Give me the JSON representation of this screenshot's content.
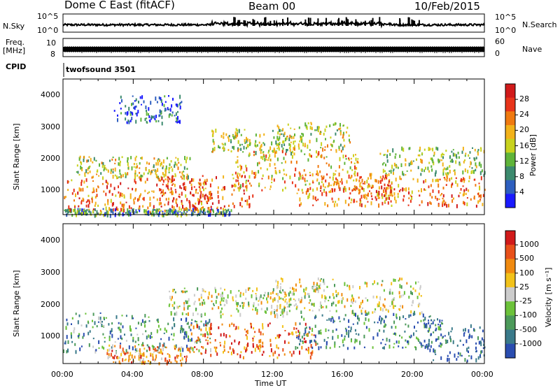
{
  "header": {
    "station": "Dome C East (fitACF)",
    "beam": "Beam 00",
    "date": "10/Feb/2015"
  },
  "panels": {
    "nsky": {
      "label": "N.Sky",
      "ticks": [
        "10^5",
        "10^0"
      ]
    },
    "nsearch": {
      "label": "N.Search",
      "ticks": [
        "10^5",
        "10^0"
      ]
    },
    "freq": {
      "label_line1": "Freq.",
      "label_line2": "[MHz]",
      "ticks": [
        "10",
        "8"
      ]
    },
    "nave": {
      "label": "Nave",
      "ticks": [
        "60",
        "0"
      ]
    },
    "cpid": {
      "label": "CPID",
      "value": "twofsound 3501"
    }
  },
  "chart_data": [
    {
      "type": "heatmap",
      "quantity": "power",
      "xlabel": "Time UT",
      "ylabel": "Slant Range [km]",
      "x_range_hours": [
        0,
        24
      ],
      "ylim": [
        180,
        4600
      ],
      "yticks": [
        1000,
        2000,
        3000,
        4000
      ],
      "colorbar": {
        "label": "Power [dB]",
        "ticks": [
          "28",
          "24",
          "20",
          "16",
          "12",
          "8",
          "4"
        ],
        "colors": [
          "#1a1aff",
          "#2e5fbf",
          "#3c8a6e",
          "#5fb43a",
          "#c8d21e",
          "#f2b21a",
          "#f07a10",
          "#e8341a",
          "#d11a1a"
        ]
      },
      "bands": [
        {
          "x": [
            0.0,
            0.2,
            0.4
          ],
          "r": [
            180,
            400
          ],
          "level": 0.3
        },
        {
          "x": [
            0.0,
            0.35
          ],
          "r": [
            300,
            1400
          ],
          "level": 0.75
        },
        {
          "x": [
            0.03,
            0.3
          ],
          "r": [
            1400,
            2100
          ],
          "level": 0.5
        },
        {
          "x": [
            0.12,
            0.28
          ],
          "r": [
            3200,
            4100
          ],
          "level": 0.15
        },
        {
          "x": [
            0.22,
            0.45
          ],
          "r": [
            400,
            1500
          ],
          "level": 0.8
        },
        {
          "x": [
            0.35,
            0.55
          ],
          "r": [
            2200,
            3000
          ],
          "level": 0.45
        },
        {
          "x": [
            0.4,
            0.7
          ],
          "r": [
            1000,
            2300
          ],
          "level": 0.6
        },
        {
          "x": [
            0.5,
            0.68
          ],
          "r": [
            2300,
            3200
          ],
          "level": 0.5
        },
        {
          "x": [
            0.55,
            0.78
          ],
          "r": [
            500,
            1600
          ],
          "level": 0.7
        },
        {
          "x": [
            0.7,
            1.0
          ],
          "r": [
            500,
            1500
          ],
          "level": 0.75
        },
        {
          "x": [
            0.75,
            1.0
          ],
          "r": [
            1500,
            2400
          ],
          "level": 0.45
        }
      ]
    },
    {
      "type": "heatmap",
      "quantity": "velocity",
      "xlabel": "Time UT",
      "ylabel": "Slant Range [km]",
      "x_range_hours": [
        0,
        24
      ],
      "ylim": [
        180,
        4600
      ],
      "yticks": [
        1000,
        2000,
        3000,
        4000
      ],
      "xticks": [
        "00:00",
        "04:00",
        "08:00",
        "12:00",
        "16:00",
        "20:00",
        "00:00"
      ],
      "colorbar": {
        "label": "Velocity [m s⁻¹]",
        "ticks": [
          "1000",
          "500",
          "100",
          "25",
          "-25",
          "-100",
          "-500",
          "-1000"
        ],
        "colors": [
          "#2a4db0",
          "#3a7a8a",
          "#4c9a5a",
          "#6cc23a",
          "#cccccc",
          "#f2c21a",
          "#f08a10",
          "#e8501a",
          "#d11a1a"
        ]
      },
      "bands": [
        {
          "x": [
            0.0,
            0.35
          ],
          "r": [
            600,
            1800
          ],
          "level": 0.25
        },
        {
          "x": [
            0.1,
            0.3
          ],
          "r": [
            200,
            800
          ],
          "level": 0.7
        },
        {
          "x": [
            0.25,
            0.55
          ],
          "r": [
            1700,
            2600
          ],
          "level": 0.5
        },
        {
          "x": [
            0.3,
            0.6
          ],
          "r": [
            400,
            1500
          ],
          "level": 0.8
        },
        {
          "x": [
            0.5,
            0.85
          ],
          "r": [
            1800,
            2900
          ],
          "level": 0.5
        },
        {
          "x": [
            0.55,
            0.9
          ],
          "r": [
            700,
            1800
          ],
          "level": 0.2
        },
        {
          "x": [
            0.85,
            1.0
          ],
          "r": [
            300,
            1600
          ],
          "level": 0.1
        }
      ]
    }
  ]
}
